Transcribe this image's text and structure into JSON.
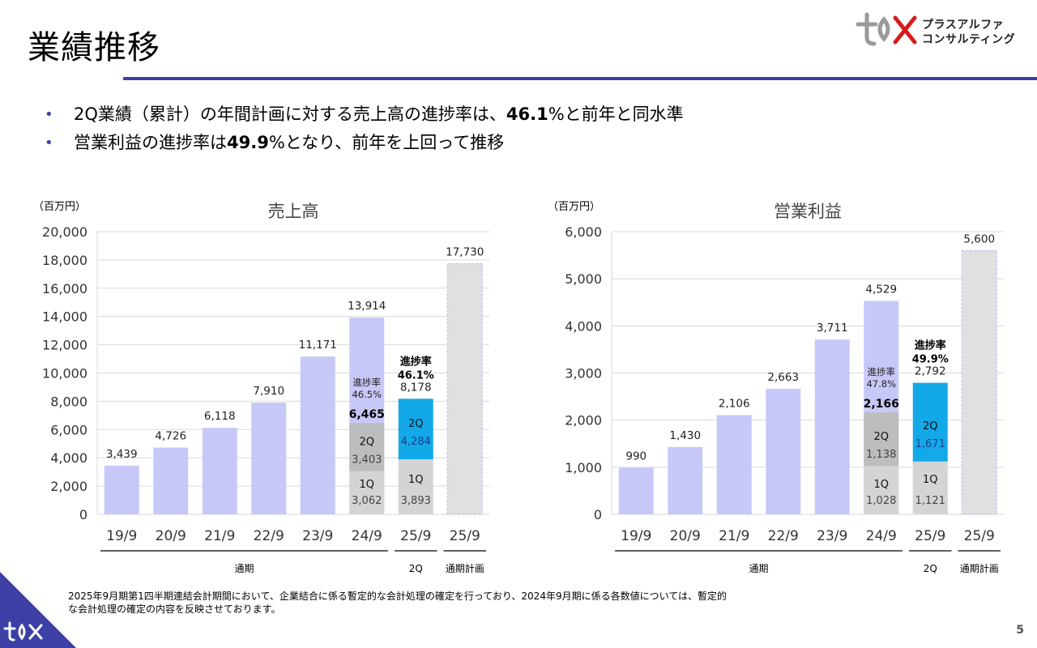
{
  "page": {
    "title": "業績推移",
    "logo_line1": "プラスアルファ",
    "logo_line2": "コンサルティング",
    "page_number": "5",
    "footnote_line1": "2025年9月期第1四半期連結会計期間において、企業結合に係る暫定的な会計処理の確定を行っており、2024年9月期に係る各数値については、暫定的",
    "footnote_line2": "な会計処理の確定の内容を反映させております。"
  },
  "bullets": [
    {
      "pre": "2Q業績（累計）の年間計画に対する売上高の進捗率は、",
      "bold": "46.1",
      "post": "%と前年と同水準"
    },
    {
      "pre": "営業利益の進捗率は",
      "bold": "49.9",
      "post": "%となり、前年を上回って推移"
    }
  ],
  "colors": {
    "accent": "#3c3fa6",
    "bar_fullyear": "#c8c8f8",
    "bar_1q": "#d4d4d4",
    "bar_2q_prior": "#bdbdbd",
    "bar_2q_current": "#13a9e8",
    "bar_plan": "#e0e0e0"
  },
  "chart_data": [
    {
      "type": "bar",
      "title": "売上高",
      "unit": "（百万円）",
      "ylim": [
        0,
        20000
      ],
      "yticks": [
        "0",
        "2,000",
        "4,000",
        "6,000",
        "8,000",
        "10,000",
        "12,000",
        "14,000",
        "16,000",
        "18,000",
        "20,000"
      ],
      "categories": [
        "19/9",
        "20/9",
        "21/9",
        "22/9",
        "23/9",
        "24/9",
        "25/9",
        "25/9"
      ],
      "values": [
        3439,
        4726,
        6118,
        7910,
        11171,
        13914,
        8178,
        17730
      ],
      "value_labels": [
        "3,439",
        "4,726",
        "6,118",
        "7,910",
        "11,171",
        "13,914",
        "8,178",
        "17,730"
      ],
      "groups": [
        {
          "label": "通期",
          "from": 0,
          "to": 5
        },
        {
          "label": "2Q",
          "from": 6,
          "to": 6
        },
        {
          "label": "通期計画",
          "from": 7,
          "to": 7
        }
      ],
      "prior_year_breakdown": {
        "index": 5,
        "cumulative_2q": 6465,
        "cumulative_2q_label": "6,465",
        "q1": 3062,
        "q1_label": "3,062",
        "q2": 3403,
        "q2_label": "3,403",
        "progress_label": "進捗率",
        "progress_value": "46.5%"
      },
      "current_breakdown": {
        "index": 6,
        "q1": 3893,
        "q1_label": "3,893",
        "q2": 4284,
        "q2_label": "4,284",
        "progress_label": "進捗率",
        "progress_value": "46.1%"
      },
      "q_labels": {
        "q1": "1Q",
        "q2": "2Q"
      }
    },
    {
      "type": "bar",
      "title": "営業利益",
      "unit": "（百万円）",
      "ylim": [
        0,
        6000
      ],
      "yticks": [
        "0",
        "1,000",
        "2,000",
        "3,000",
        "4,000",
        "5,000",
        "6,000"
      ],
      "categories": [
        "19/9",
        "20/9",
        "21/9",
        "22/9",
        "23/9",
        "24/9",
        "25/9",
        "25/9"
      ],
      "values": [
        990,
        1430,
        2106,
        2663,
        3711,
        4529,
        2792,
        5600
      ],
      "value_labels": [
        "990",
        "1,430",
        "2,106",
        "2,663",
        "3,711",
        "4,529",
        "2,792",
        "5,600"
      ],
      "groups": [
        {
          "label": "通期",
          "from": 0,
          "to": 5
        },
        {
          "label": "2Q",
          "from": 6,
          "to": 6
        },
        {
          "label": "通期計画",
          "from": 7,
          "to": 7
        }
      ],
      "prior_year_breakdown": {
        "index": 5,
        "cumulative_2q": 2166,
        "cumulative_2q_label": "2,166",
        "q1": 1028,
        "q1_label": "1,028",
        "q2": 1138,
        "q2_label": "1,138",
        "progress_label": "進捗率",
        "progress_value": "47.8%"
      },
      "current_breakdown": {
        "index": 6,
        "q1": 1121,
        "q1_label": "1,121",
        "q2": 1671,
        "q2_label": "1,671",
        "progress_label": "進捗率",
        "progress_value": "49.9%"
      },
      "q_labels": {
        "q1": "1Q",
        "q2": "2Q"
      }
    }
  ]
}
